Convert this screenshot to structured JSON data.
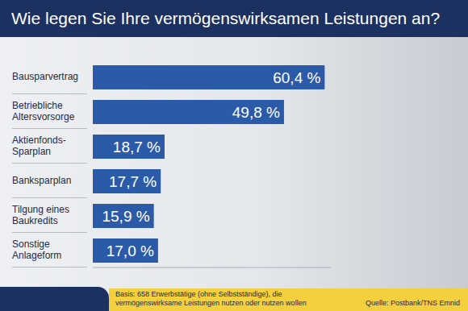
{
  "chart_data": {
    "type": "bar",
    "title": "Wie legen Sie Ihre vermögenswirksamen Leistungen an?",
    "categories": [
      "Bausparvertrag",
      "Betriebliche Altersvorsorge",
      "Aktienfonds-Sparplan",
      "Banksparplan",
      "Tilgung eines Baukredits",
      "Sonstige Anlageform"
    ],
    "values": [
      60.4,
      49.8,
      18.7,
      17.7,
      15.9,
      17.0
    ],
    "value_labels": [
      "60,4 %",
      "49,8 %",
      "18,7 %",
      "17,7 %",
      "15,9 %",
      "17,0 %"
    ],
    "color": "#2b5ba8",
    "orientation": "horizontal",
    "data_labels": true,
    "tick_labels": "y",
    "grid": false,
    "xlim": [
      0,
      62
    ],
    "footnote": "Basis: 658 Erwerbstätige (ohne Selbstständige), die vermögenswirksame Leistungen nutzen oder nutzen wollen",
    "source": "Quelle: Postbank/TNS Emnid"
  }
}
